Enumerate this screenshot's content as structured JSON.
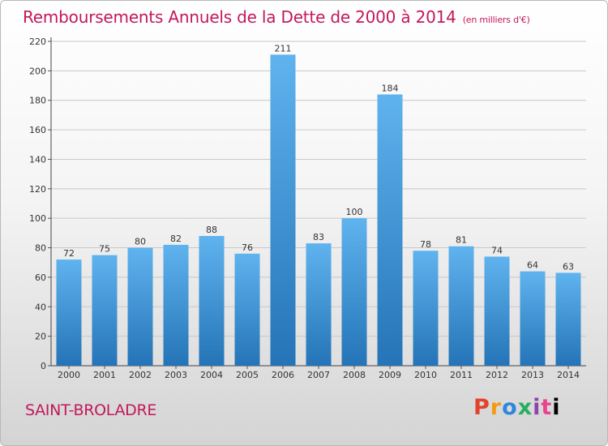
{
  "header": {
    "title": "Remboursements Annuels de la Dette de 2000 à 2014",
    "unit": "(en milliers d'€)"
  },
  "footer": {
    "city": "SAINT-BROLADRE",
    "logo_letters": [
      "P",
      "r",
      "o",
      "x",
      "i",
      "t",
      "i"
    ]
  },
  "colors": {
    "title": "#c2185b",
    "bar_top": "#5fb3ee",
    "bar_bottom": "#2474b7"
  },
  "chart_data": {
    "type": "bar",
    "title": "Remboursements Annuels de la Dette de 2000 à 2014",
    "xlabel": "",
    "ylabel": "",
    "categories": [
      "2000",
      "2001",
      "2002",
      "2003",
      "2004",
      "2005",
      "2006",
      "2007",
      "2008",
      "2009",
      "2010",
      "2011",
      "2012",
      "2013",
      "2014"
    ],
    "values": [
      72,
      75,
      80,
      82,
      88,
      76,
      211,
      83,
      100,
      184,
      78,
      81,
      74,
      64,
      63
    ],
    "ylim": [
      0,
      220
    ],
    "yticks": [
      0,
      20,
      40,
      60,
      80,
      100,
      120,
      140,
      160,
      180,
      200,
      220
    ],
    "grid": true
  }
}
